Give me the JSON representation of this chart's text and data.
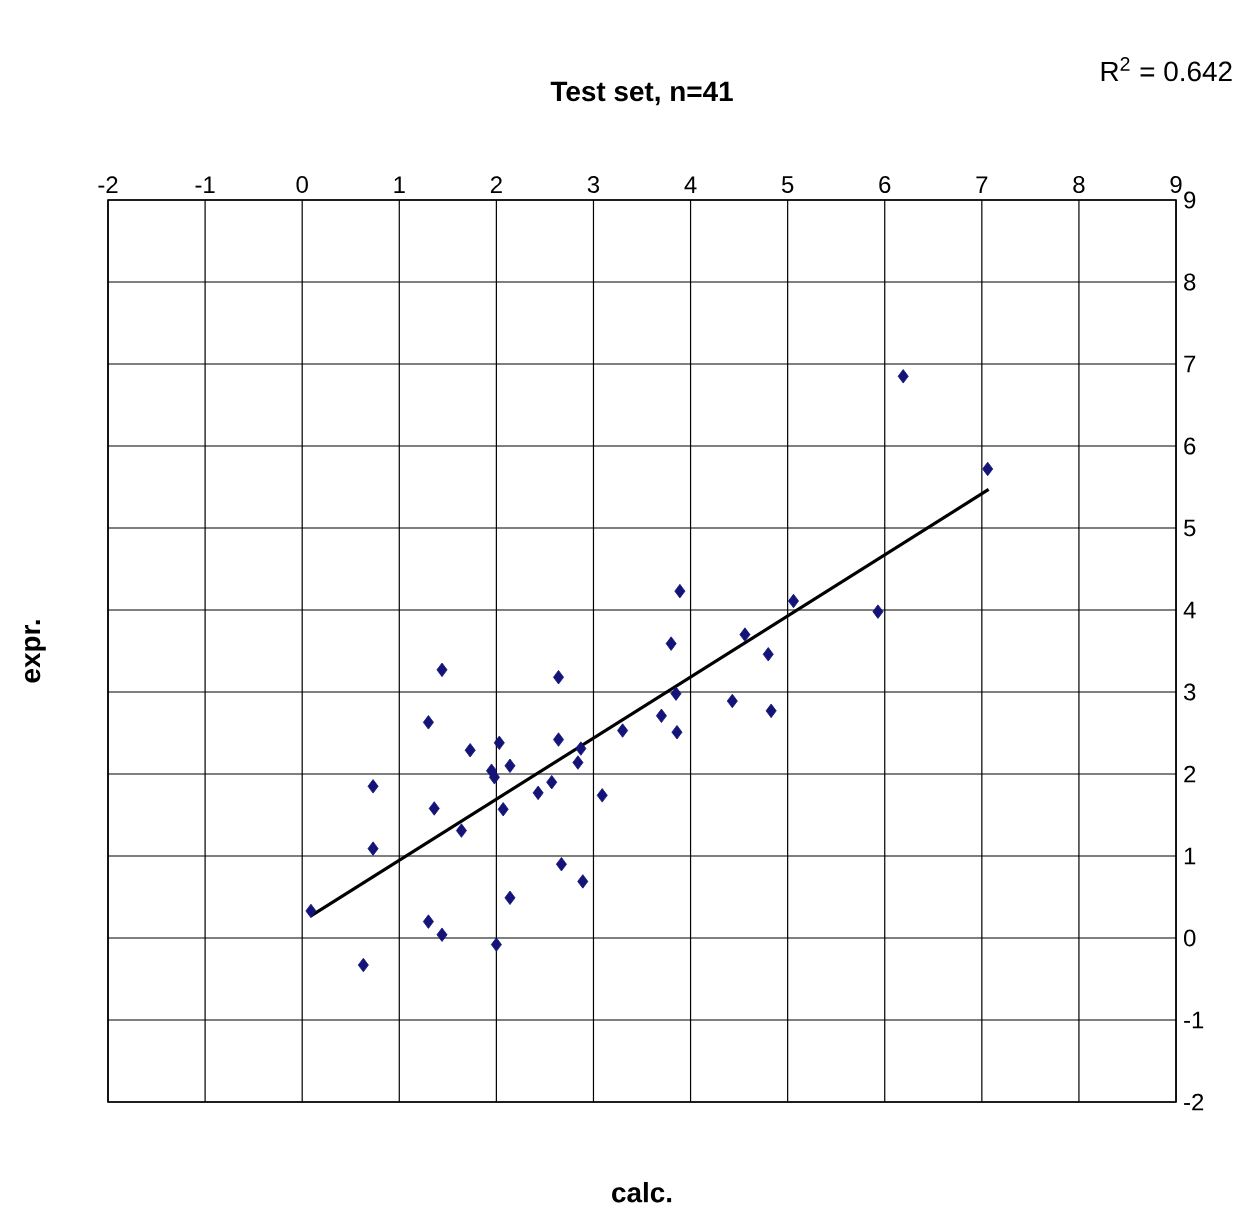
{
  "chart_data": {
    "type": "scatter",
    "title": "Test set, n=41",
    "xlabel": "calc.",
    "ylabel": "expr.",
    "annotations": [
      "R$^{2}$ = 0.642"
    ],
    "xlim": [
      -2,
      9
    ],
    "ylim": [
      -2,
      9
    ],
    "xticks": [
      -2,
      -1,
      0,
      1,
      2,
      3,
      4,
      5,
      6,
      7,
      8,
      9
    ],
    "yticks": [
      -2,
      -1,
      0,
      1,
      2,
      3,
      4,
      5,
      6,
      7,
      8,
      9
    ],
    "grid": true,
    "series": [
      {
        "marker": "diamond",
        "color": "#141478",
        "x": [
          0.09,
          0.63,
          0.73,
          0.73,
          1.3,
          1.44,
          1.36,
          1.3,
          1.44,
          1.64,
          1.73,
          2.03,
          1.95,
          1.98,
          2.14,
          2.07,
          2.14,
          2.0,
          2.43,
          2.57,
          2.64,
          2.64,
          2.84,
          2.87,
          2.67,
          2.89,
          3.09,
          3.3,
          3.7,
          3.8,
          3.85,
          3.86,
          6.19,
          7.06,
          3.89,
          4.56,
          4.8,
          4.43,
          4.83,
          5.06,
          5.93
        ],
        "values": [
          0.33,
          -0.33,
          1.85,
          1.09,
          2.63,
          3.27,
          1.58,
          0.2,
          0.04,
          1.31,
          2.29,
          2.38,
          2.04,
          1.96,
          2.1,
          1.57,
          0.49,
          -0.08,
          1.77,
          1.9,
          2.42,
          3.18,
          2.14,
          2.31,
          0.9,
          0.69,
          1.74,
          2.53,
          2.71,
          3.59,
          2.98,
          2.51,
          6.85,
          5.72,
          4.23,
          3.7,
          3.46,
          2.89,
          2.77,
          4.11,
          3.98
        ]
      },
      {
        "type": "line",
        "marker": "none",
        "color": "#000000",
        "x": [
          0.09,
          7.07
        ],
        "values": [
          0.27,
          5.47
        ]
      }
    ]
  }
}
